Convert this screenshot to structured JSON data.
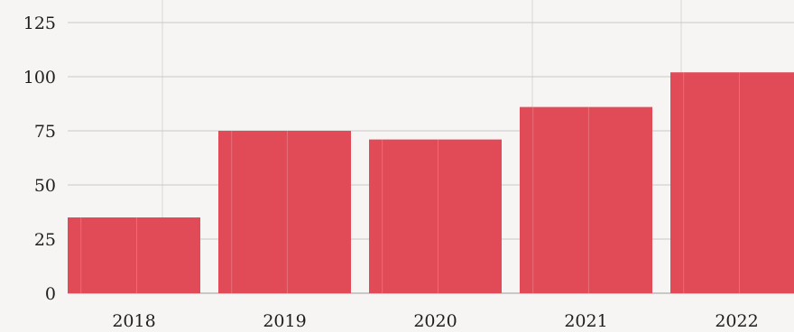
{
  "chart_data": {
    "type": "bar",
    "categories": [
      "2018",
      "2019",
      "2020",
      "2021",
      "2022"
    ],
    "values": [
      35,
      75,
      71,
      86,
      102
    ],
    "ylim": [
      0,
      125
    ],
    "yticks": [
      0,
      25,
      50,
      75,
      100,
      125
    ],
    "ytick_labels": [
      "0",
      "25",
      "50",
      "75",
      "100",
      "125"
    ],
    "title": "",
    "xlabel": "",
    "ylabel": "",
    "grid": true,
    "legend": "none",
    "bar_color": "#e04b57"
  }
}
